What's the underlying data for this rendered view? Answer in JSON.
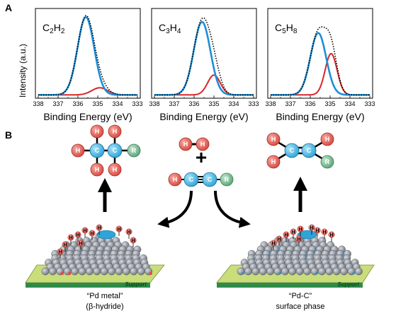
{
  "panel_a": {
    "letter": "A",
    "ylabel": "Intensity (a.u.)",
    "xlabel": "Binding Energy (eV)"
  },
  "panel_b": {
    "letter": "B",
    "plus": "+",
    "left_caption_line1": "“Pd metal”",
    "left_caption_line2": "(β-hydride)",
    "right_caption_line1": "“Pd-C”",
    "right_caption_line2": "surface phase",
    "support_label": "Support"
  },
  "atoms": {
    "H": "H",
    "C": "C",
    "R": "R"
  },
  "colors": {
    "blue_line": "#1e8fd6",
    "red_line": "#d7262b",
    "dotted": "#000000",
    "h_atom": "#e9655a",
    "c_atom": "#5cc4ec",
    "r_atom": "#7fc29b",
    "support_green": "#2e8b4a",
    "support_top": "#c9dd7a",
    "pd_grey": "#8d929b"
  },
  "chart_data": [
    {
      "type": "line",
      "title": "C2H2",
      "xlabel": "Binding Energy (eV)",
      "ylabel": "Intensity (a.u.)",
      "xlim": [
        338,
        333
      ],
      "ylim": [
        0,
        1.05
      ],
      "x_ticks": [
        "338",
        "337",
        "336",
        "335",
        "334",
        "333"
      ],
      "series": [
        {
          "style": "blue",
          "peaks": [
            {
              "center": 335.6,
              "height": 0.98,
              "width": 0.42
            }
          ]
        },
        {
          "style": "red",
          "peaks": [
            {
              "center": 334.9,
              "height": 0.09,
              "width": 0.4
            }
          ]
        },
        {
          "style": "dotted",
          "peaks": [
            {
              "center": 335.6,
              "height": 0.98,
              "width": 0.42
            },
            {
              "center": 334.9,
              "height": 0.09,
              "width": 0.4
            }
          ]
        }
      ]
    },
    {
      "type": "line",
      "title": "C3H4",
      "xlabel": "Binding Energy (eV)",
      "ylabel": "Intensity (a.u.)",
      "xlim": [
        338,
        333
      ],
      "ylim": [
        0,
        1.05
      ],
      "x_ticks": [
        "338",
        "337",
        "336",
        "335",
        "334",
        "333"
      ],
      "series": [
        {
          "style": "blue",
          "peaks": [
            {
              "center": 335.6,
              "height": 0.92,
              "width": 0.42
            }
          ]
        },
        {
          "style": "red",
          "peaks": [
            {
              "center": 335.0,
              "height": 0.25,
              "width": 0.32
            }
          ]
        },
        {
          "style": "dotted",
          "peaks": [
            {
              "center": 335.6,
              "height": 0.92,
              "width": 0.42
            },
            {
              "center": 335.0,
              "height": 0.25,
              "width": 0.32
            }
          ]
        }
      ]
    },
    {
      "type": "line",
      "title": "C5H8",
      "xlabel": "Binding Energy (eV)",
      "ylabel": "Intensity (a.u.)",
      "xlim": [
        338,
        333
      ],
      "ylim": [
        0,
        1.05
      ],
      "x_ticks": [
        "338",
        "337",
        "336",
        "335",
        "334",
        "333"
      ],
      "series": [
        {
          "style": "blue",
          "peaks": [
            {
              "center": 335.6,
              "height": 0.78,
              "width": 0.4
            }
          ]
        },
        {
          "style": "red",
          "peaks": [
            {
              "center": 334.95,
              "height": 0.52,
              "width": 0.3
            }
          ]
        },
        {
          "style": "dotted",
          "peaks": [
            {
              "center": 335.6,
              "height": 0.78,
              "width": 0.4
            },
            {
              "center": 334.95,
              "height": 0.52,
              "width": 0.3
            }
          ]
        }
      ]
    }
  ]
}
